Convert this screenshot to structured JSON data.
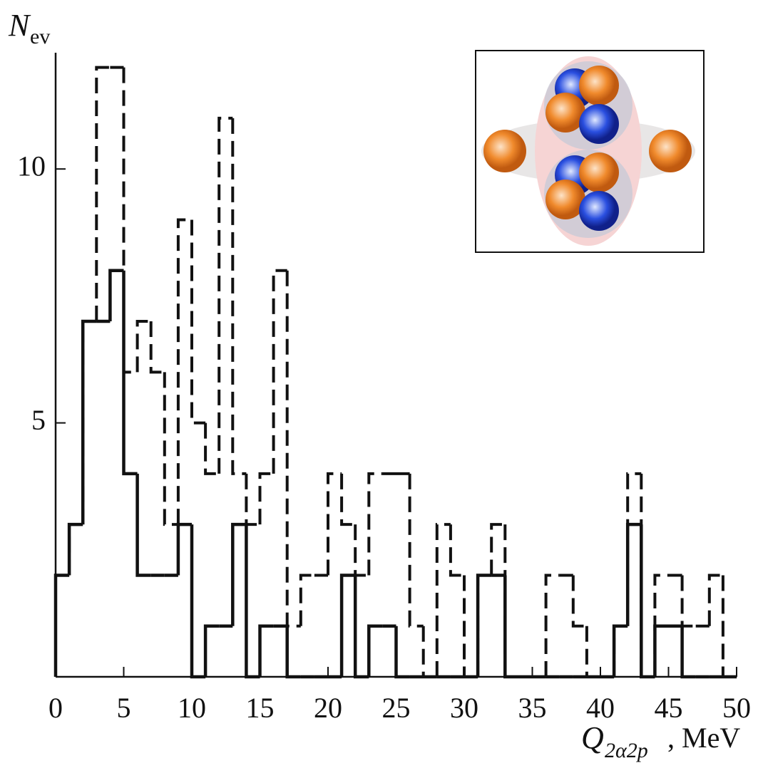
{
  "chart_data": {
    "type": "histogram",
    "ylabel": {
      "main": "N",
      "sub": "ev"
    },
    "xlabel": {
      "main": "Q",
      "sub": "2α2p",
      "unit": ", MeV"
    },
    "bins": [
      0,
      1,
      2,
      3,
      4,
      5,
      6,
      7,
      8,
      9,
      10,
      11,
      12,
      13,
      14,
      15,
      16,
      17,
      18,
      19,
      20,
      21,
      22,
      23,
      24,
      25,
      26,
      27,
      28,
      29,
      30,
      31,
      32,
      33,
      34,
      35,
      36,
      37,
      38,
      39,
      40,
      41,
      42,
      43,
      44,
      45,
      46,
      47,
      48,
      49,
      50
    ],
    "series": [
      {
        "style": "dashed",
        "color": "#111111",
        "values": [
          2,
          3,
          7,
          12,
          12,
          6,
          7,
          6,
          3,
          9,
          5,
          4,
          11,
          4,
          3,
          4,
          8,
          1,
          2,
          2,
          4,
          3,
          2,
          4,
          4,
          4,
          1,
          0,
          3,
          2,
          0,
          2,
          3,
          0,
          0,
          0,
          2,
          2,
          1,
          0,
          0,
          1,
          4,
          0,
          2,
          2,
          1,
          1,
          2,
          0
        ]
      },
      {
        "style": "solid",
        "color": "#111111",
        "values": [
          2,
          3,
          7,
          7,
          8,
          4,
          2,
          2,
          2,
          3,
          0,
          1,
          1,
          3,
          0,
          1,
          1,
          0,
          0,
          0,
          0,
          2,
          0,
          1,
          1,
          0,
          0,
          0,
          0,
          0,
          0,
          2,
          2,
          0,
          0,
          0,
          0,
          0,
          0,
          0,
          0,
          1,
          3,
          0,
          1,
          1,
          0,
          0,
          0,
          0
        ]
      }
    ],
    "xlim": [
      0,
      50
    ],
    "ylim": [
      0,
      12.5
    ],
    "xticks": [
      0,
      5,
      10,
      15,
      20,
      25,
      30,
      35,
      40,
      45,
      50
    ],
    "yticks": [
      5,
      10
    ]
  }
}
